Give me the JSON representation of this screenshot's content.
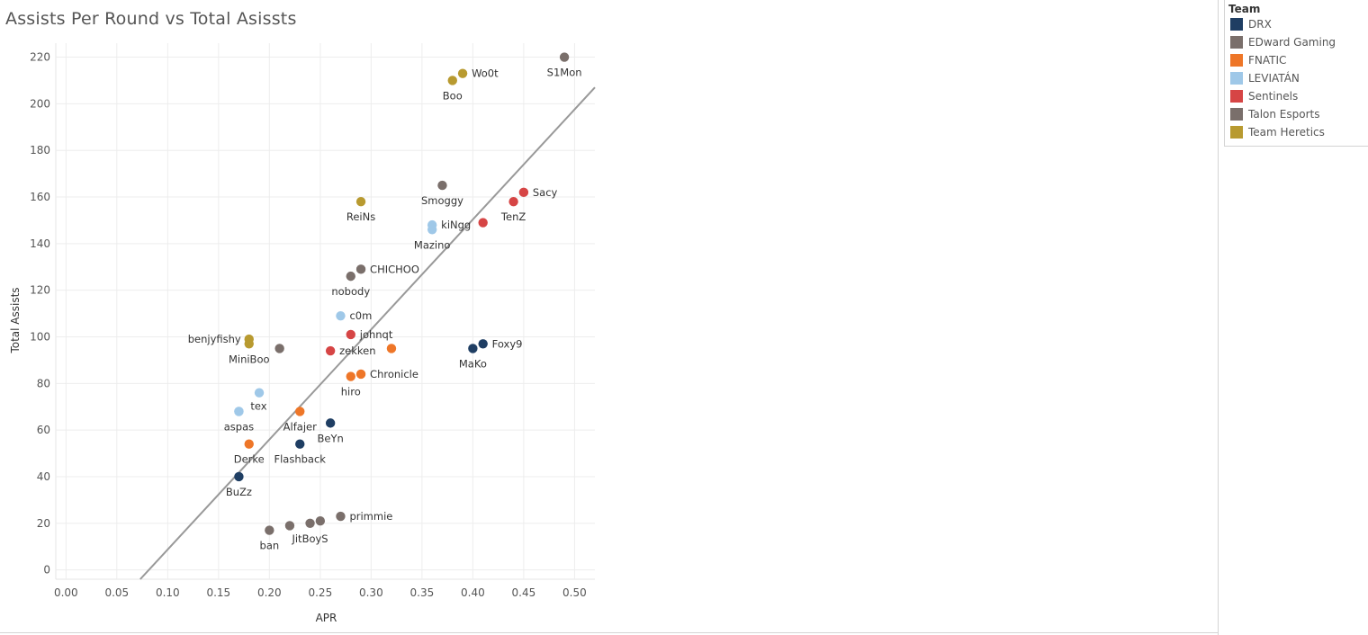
{
  "chart_data": {
    "type": "scatter",
    "title": "Assists Per Round vs Total Asissts",
    "xlabel": "APR",
    "ylabel": "Total Assists",
    "xlim": [
      -0.01,
      0.52
    ],
    "ylim": [
      -4,
      226
    ],
    "x_ticks": [
      "0.00",
      "0.05",
      "0.10",
      "0.15",
      "0.20",
      "0.25",
      "0.30",
      "0.35",
      "0.40",
      "0.45",
      "0.50"
    ],
    "y_ticks": [
      "0",
      "20",
      "40",
      "60",
      "80",
      "100",
      "120",
      "140",
      "160",
      "180",
      "200",
      "220"
    ],
    "grid": true,
    "trend_line": {
      "x1": 0.073,
      "y1": -4,
      "x2": 0.52,
      "y2": 207
    },
    "legend": {
      "title": "Team",
      "position": "right",
      "teams": [
        {
          "name": "DRX",
          "color": "#1f3e63"
        },
        {
          "name": "EDward Gaming",
          "color": "#7a6f6b"
        },
        {
          "name": "FNATIC",
          "color": "#ee7628"
        },
        {
          "name": "LEVIATÁN",
          "color": "#9fc8e8"
        },
        {
          "name": "Sentinels",
          "color": "#d64545"
        },
        {
          "name": "Talon Esports",
          "color": "#7a6f6b"
        },
        {
          "name": "Team Heretics",
          "color": "#b89a30"
        }
      ]
    },
    "points": [
      {
        "x": 0.49,
        "y": 220,
        "team": "EDward Gaming",
        "label": "S1Mon",
        "label_pos": "below"
      },
      {
        "x": 0.39,
        "y": 213,
        "team": "Team Heretics",
        "label": "Wo0t",
        "label_pos": "right"
      },
      {
        "x": 0.38,
        "y": 210,
        "team": "Team Heretics",
        "label": "Boo",
        "label_pos": "below"
      },
      {
        "x": 0.37,
        "y": 165,
        "team": "Talon Esports",
        "label": "Smoggy",
        "label_pos": "below"
      },
      {
        "x": 0.45,
        "y": 162,
        "team": "Sentinels",
        "label": "Sacy",
        "label_pos": "right"
      },
      {
        "x": 0.44,
        "y": 158,
        "team": "Sentinels",
        "label": "TenZ",
        "label_pos": "below"
      },
      {
        "x": 0.29,
        "y": 158,
        "team": "Team Heretics",
        "label": "ReiNs",
        "label_pos": "below"
      },
      {
        "x": 0.41,
        "y": 149,
        "team": "Sentinels",
        "label": "",
        "label_pos": "none"
      },
      {
        "x": 0.36,
        "y": 148,
        "team": "LEVIATÁN",
        "label": "kiNgg",
        "label_pos": "right"
      },
      {
        "x": 0.36,
        "y": 146,
        "team": "LEVIATÁN",
        "label": "Mazino",
        "label_pos": "below"
      },
      {
        "x": 0.29,
        "y": 129,
        "team": "Talon Esports",
        "label": "CHICHOO",
        "label_pos": "right"
      },
      {
        "x": 0.28,
        "y": 126,
        "team": "EDward Gaming",
        "label": "nobody",
        "label_pos": "below"
      },
      {
        "x": 0.27,
        "y": 109,
        "team": "LEVIATÁN",
        "label": "c0m",
        "label_pos": "right"
      },
      {
        "x": 0.28,
        "y": 101,
        "team": "Sentinels",
        "label": "johnqt",
        "label_pos": "right"
      },
      {
        "x": 0.18,
        "y": 99,
        "team": "Team Heretics",
        "label": "benjyfishy",
        "label_pos": "left"
      },
      {
        "x": 0.18,
        "y": 97,
        "team": "Team Heretics",
        "label": "MiniBoo",
        "label_pos": "below"
      },
      {
        "x": 0.41,
        "y": 97,
        "team": "DRX",
        "label": "Foxy9",
        "label_pos": "right"
      },
      {
        "x": 0.4,
        "y": 95,
        "team": "DRX",
        "label": "MaKo",
        "label_pos": "below"
      },
      {
        "x": 0.21,
        "y": 95,
        "team": "Talon Esports",
        "label": "",
        "label_pos": "none"
      },
      {
        "x": 0.32,
        "y": 95,
        "team": "FNATIC",
        "label": "",
        "label_pos": "none"
      },
      {
        "x": 0.26,
        "y": 94,
        "team": "Sentinels",
        "label": "zekken",
        "label_pos": "right"
      },
      {
        "x": 0.29,
        "y": 84,
        "team": "FNATIC",
        "label": "Chronicle",
        "label_pos": "right"
      },
      {
        "x": 0.28,
        "y": 83,
        "team": "FNATIC",
        "label": "hiro",
        "label_pos": "below"
      },
      {
        "x": 0.19,
        "y": 76,
        "team": "LEVIATÁN",
        "label": "",
        "label_pos": "none"
      },
      {
        "x": 0.17,
        "y": 68,
        "team": "LEVIATÁN",
        "label": "tex",
        "label_pos": "right-far"
      },
      {
        "x": 0.17,
        "y": 68,
        "team": "LEVIATÁN",
        "label": "aspas",
        "label_pos": "below"
      },
      {
        "x": 0.23,
        "y": 68,
        "team": "FNATIC",
        "label": "Alfajer",
        "label_pos": "below"
      },
      {
        "x": 0.26,
        "y": 63,
        "team": "DRX",
        "label": "BeYn",
        "label_pos": "below"
      },
      {
        "x": 0.18,
        "y": 54,
        "team": "FNATIC",
        "label": "Derke",
        "label_pos": "below"
      },
      {
        "x": 0.23,
        "y": 54,
        "team": "DRX",
        "label": "Flashback",
        "label_pos": "below"
      },
      {
        "x": 0.17,
        "y": 40,
        "team": "DRX",
        "label": "BuZz",
        "label_pos": "below"
      },
      {
        "x": 0.27,
        "y": 23,
        "team": "EDward Gaming",
        "label": "primmie",
        "label_pos": "right"
      },
      {
        "x": 0.25,
        "y": 21,
        "team": "EDward Gaming",
        "label": "",
        "label_pos": "none"
      },
      {
        "x": 0.24,
        "y": 20,
        "team": "Talon Esports",
        "label": "JitBoyS",
        "label_pos": "below"
      },
      {
        "x": 0.22,
        "y": 19,
        "team": "Talon Esports",
        "label": "",
        "label_pos": "none"
      },
      {
        "x": 0.2,
        "y": 17,
        "team": "Talon Esports",
        "label": "ban",
        "label_pos": "below"
      }
    ]
  }
}
